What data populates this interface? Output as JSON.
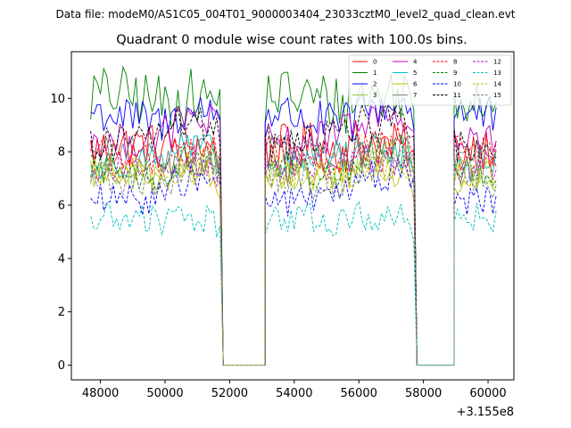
{
  "header": {
    "data_file": "Data file: modeM0/AS1C05_004T01_9000003404_23033cztM0_level2_quad_clean.evt"
  },
  "chart_data": {
    "type": "line",
    "title": "Quadrant 0 module wise count rates with 100.0s bins.",
    "xlabel": "",
    "ylabel": "",
    "x_offset_label": "+3.155e8",
    "xlim": [
      47100,
      60800
    ],
    "ylim": [
      -0.55,
      11.75
    ],
    "x_ticks": [
      48000,
      50000,
      52000,
      54000,
      56000,
      58000,
      60000
    ],
    "x_tick_labels": [
      "48000",
      "50000",
      "52000",
      "54000",
      "56000",
      "58000",
      "60000"
    ],
    "y_ticks": [
      0,
      2,
      4,
      6,
      8,
      10
    ],
    "y_tick_labels": [
      "0",
      "2",
      "4",
      "6",
      "8",
      "10"
    ],
    "segments": [
      {
        "start": 47700,
        "end": 51700,
        "drop_to": 51800
      },
      {
        "start": 53100,
        "end": 57700,
        "drop_to": 57800
      },
      {
        "start": 58950,
        "end": 60250,
        "drop_to": null
      }
    ],
    "gaps": [
      {
        "from": 51800,
        "to": 53100,
        "value": 0
      },
      {
        "from": 57800,
        "to": 58950,
        "value": 0
      }
    ],
    "bin_seconds": 100,
    "series": [
      {
        "name": "0",
        "color": "#ff0000",
        "dash": "solid",
        "mean": 8.0,
        "amp": 0.9
      },
      {
        "name": "1",
        "color": "#008000",
        "dash": "solid",
        "mean": 9.9,
        "amp": 1.1
      },
      {
        "name": "2",
        "color": "#0000ff",
        "dash": "solid",
        "mean": 9.3,
        "amp": 0.8
      },
      {
        "name": "3",
        "color": "#9acd32",
        "dash": "solid",
        "mean": 7.2,
        "amp": 0.6
      },
      {
        "name": "4",
        "color": "#bf00bf",
        "dash": "solid",
        "mean": 8.6,
        "amp": 0.7
      },
      {
        "name": "5",
        "color": "#00bfbf",
        "dash": "solid",
        "mean": 7.6,
        "amp": 0.6
      },
      {
        "name": "6",
        "color": "#bfbf00",
        "dash": "solid",
        "mean": 7.0,
        "amp": 0.6
      },
      {
        "name": "7",
        "color": "#808080",
        "dash": "solid",
        "mean": 7.8,
        "amp": 0.6
      },
      {
        "name": "8",
        "color": "#ff0000",
        "dash": "dashed",
        "mean": 7.9,
        "amp": 0.6
      },
      {
        "name": "9",
        "color": "#008000",
        "dash": "dashed",
        "mean": 7.4,
        "amp": 0.6
      },
      {
        "name": "10",
        "color": "#0000ff",
        "dash": "dashed",
        "mean": 6.4,
        "amp": 0.6
      },
      {
        "name": "11",
        "color": "#000000",
        "dash": "dashed",
        "mean": 8.5,
        "amp": 0.7
      },
      {
        "name": "12",
        "color": "#bf00bf",
        "dash": "dashed",
        "mean": 7.3,
        "amp": 0.6
      },
      {
        "name": "13",
        "color": "#00bfbf",
        "dash": "dashed",
        "mean": 5.3,
        "amp": 0.6
      },
      {
        "name": "14",
        "color": "#bfbf00",
        "dash": "dashed",
        "mean": 7.1,
        "amp": 0.6
      },
      {
        "name": "15",
        "color": "#808080",
        "dash": "dashed",
        "mean": 7.0,
        "amp": 0.6
      }
    ]
  }
}
